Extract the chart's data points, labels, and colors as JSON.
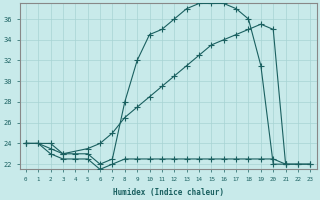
{
  "xlabel": "Humidex (Indice chaleur)",
  "background_color": "#c8eaea",
  "line_color": "#1a6060",
  "grid_color": "#a8d4d4",
  "xlim": [
    -0.5,
    23.5
  ],
  "ylim": [
    21.5,
    37.5
  ],
  "yticks": [
    22,
    24,
    26,
    28,
    30,
    32,
    34,
    36
  ],
  "xticks": [
    0,
    1,
    2,
    3,
    4,
    5,
    6,
    7,
    8,
    9,
    10,
    11,
    12,
    13,
    14,
    15,
    16,
    17,
    18,
    19,
    20,
    21,
    22,
    23
  ],
  "curve_low_x": [
    0,
    1,
    2,
    3,
    4,
    5,
    6,
    7,
    8,
    9,
    10,
    11,
    12,
    13,
    14,
    15,
    16,
    17,
    18,
    19,
    20,
    21,
    22,
    23
  ],
  "curve_low_y": [
    24,
    24,
    23,
    22.5,
    22.5,
    22.5,
    21.5,
    22,
    22.5,
    22.5,
    22.5,
    22.5,
    22.5,
    22.5,
    22.5,
    22.5,
    22.5,
    22.5,
    22.5,
    22.5,
    22.5,
    22,
    22,
    22
  ],
  "curve_peak_x": [
    0,
    1,
    2,
    3,
    4,
    5,
    6,
    7,
    8,
    9,
    10,
    11,
    12,
    13,
    14,
    15,
    16,
    17,
    18,
    19,
    20,
    21,
    22,
    23
  ],
  "curve_peak_y": [
    24,
    24,
    23.5,
    23,
    23,
    23,
    22,
    22.5,
    28,
    32,
    34.5,
    35,
    36,
    37,
    37.5,
    37.5,
    37.5,
    37,
    36,
    31.5,
    22,
    22,
    22,
    22
  ],
  "curve_mid_x": [
    0,
    2,
    3,
    5,
    6,
    7,
    8,
    9,
    10,
    11,
    12,
    13,
    14,
    15,
    16,
    17,
    18,
    19,
    20,
    21
  ],
  "curve_mid_y": [
    24,
    24,
    23,
    23.5,
    24,
    25,
    26.5,
    27.5,
    28.5,
    29.5,
    30.5,
    31.5,
    32.5,
    33.5,
    34,
    34.5,
    35,
    35.5,
    35,
    22
  ]
}
